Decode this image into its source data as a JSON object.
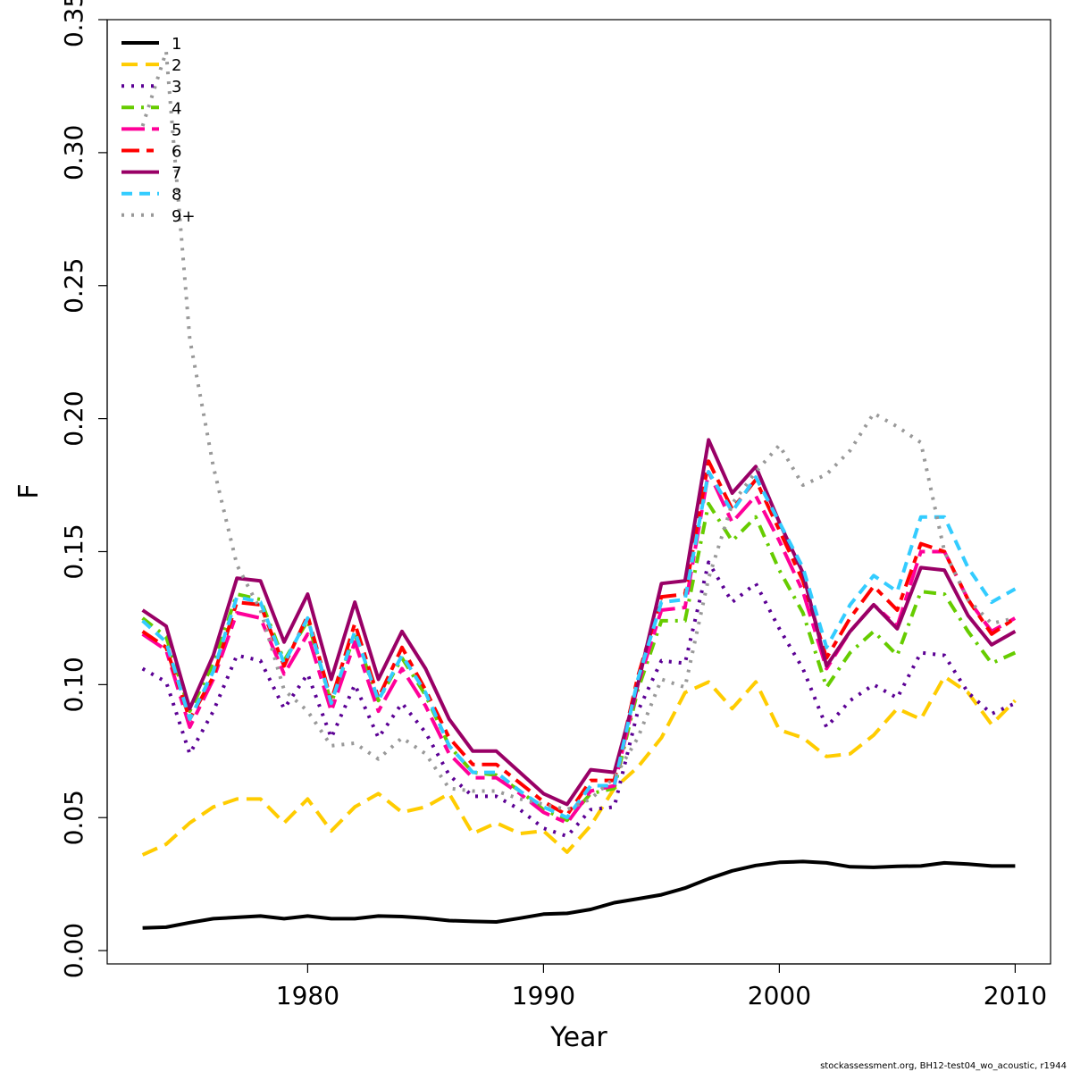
{
  "chart_data": {
    "type": "line",
    "xlabel": "Year",
    "ylabel": "F",
    "xlim": [
      1971.5,
      2011.5
    ],
    "ylim": [
      -0.005,
      0.35
    ],
    "x_ticks": [
      1980,
      1990,
      2000,
      2010
    ],
    "x_tick_labels": [
      "1980",
      "1990",
      "2000",
      "2010"
    ],
    "y_ticks": [
      0.0,
      0.05,
      0.1,
      0.15,
      0.2,
      0.25,
      0.3,
      0.35
    ],
    "y_tick_labels": [
      "0.00",
      "0.05",
      "0.10",
      "0.15",
      "0.20",
      "0.25",
      "0.30",
      "0.35"
    ],
    "grid": false,
    "legend_position": "top-left",
    "x": [
      1973,
      1974,
      1975,
      1976,
      1977,
      1978,
      1979,
      1980,
      1981,
      1982,
      1983,
      1984,
      1985,
      1986,
      1987,
      1988,
      1989,
      1990,
      1991,
      1992,
      1993,
      1994,
      1995,
      1996,
      1997,
      1998,
      1999,
      2000,
      2001,
      2002,
      2003,
      2004,
      2005,
      2006,
      2007,
      2008,
      2009,
      2010
    ],
    "series": [
      {
        "name": "1",
        "color": "#000000",
        "dash": "solid",
        "values": [
          0.0085,
          0.0088,
          0.0105,
          0.012,
          0.0125,
          0.013,
          0.012,
          0.013,
          0.012,
          0.012,
          0.013,
          0.0128,
          0.0122,
          0.0113,
          0.011,
          0.0108,
          0.0122,
          0.0137,
          0.014,
          0.0155,
          0.018,
          0.0195,
          0.021,
          0.0235,
          0.027,
          0.03,
          0.032,
          0.0332,
          0.0335,
          0.033,
          0.0315,
          0.0313,
          0.0317,
          0.0318,
          0.033,
          0.0325,
          0.0318,
          0.0318
        ]
      },
      {
        "name": "2",
        "color": "#FFCC00",
        "dash": "long",
        "values": [
          0.036,
          0.04,
          0.048,
          0.054,
          0.057,
          0.057,
          0.048,
          0.057,
          0.045,
          0.054,
          0.059,
          0.052,
          0.054,
          0.059,
          0.044,
          0.048,
          0.044,
          0.045,
          0.037,
          0.047,
          0.061,
          0.069,
          0.08,
          0.097,
          0.101,
          0.091,
          0.101,
          0.083,
          0.08,
          0.073,
          0.074,
          0.081,
          0.091,
          0.087,
          0.103,
          0.097,
          0.085,
          0.094
        ]
      },
      {
        "name": "3",
        "color": "#5B0094",
        "dash": "dot",
        "values": [
          0.106,
          0.101,
          0.074,
          0.09,
          0.111,
          0.109,
          0.091,
          0.104,
          0.08,
          0.1,
          0.08,
          0.093,
          0.082,
          0.066,
          0.058,
          0.058,
          0.053,
          0.046,
          0.043,
          0.053,
          0.054,
          0.09,
          0.109,
          0.108,
          0.146,
          0.131,
          0.138,
          0.121,
          0.106,
          0.084,
          0.094,
          0.1,
          0.095,
          0.112,
          0.111,
          0.097,
          0.089,
          0.093
        ]
      },
      {
        "name": "4",
        "color": "#66CC00",
        "dash": "dashdot",
        "values": [
          0.125,
          0.118,
          0.09,
          0.108,
          0.134,
          0.132,
          0.109,
          0.124,
          0.093,
          0.119,
          0.094,
          0.11,
          0.096,
          0.077,
          0.067,
          0.066,
          0.06,
          0.053,
          0.049,
          0.059,
          0.061,
          0.098,
          0.124,
          0.124,
          0.168,
          0.154,
          0.163,
          0.143,
          0.127,
          0.099,
          0.112,
          0.12,
          0.111,
          0.135,
          0.134,
          0.12,
          0.108,
          0.112
        ]
      },
      {
        "name": "5",
        "color": "#FF0099",
        "dash": "longshort",
        "values": [
          0.119,
          0.113,
          0.084,
          0.102,
          0.127,
          0.125,
          0.104,
          0.119,
          0.09,
          0.116,
          0.09,
          0.106,
          0.092,
          0.074,
          0.065,
          0.065,
          0.059,
          0.052,
          0.048,
          0.06,
          0.062,
          0.1,
          0.128,
          0.129,
          0.18,
          0.161,
          0.171,
          0.154,
          0.135,
          0.106,
          0.12,
          0.13,
          0.122,
          0.15,
          0.15,
          0.132,
          0.12,
          0.125
        ]
      },
      {
        "name": "6",
        "color": "#FF0000",
        "dash": "twodash",
        "values": [
          0.12,
          0.114,
          0.087,
          0.103,
          0.131,
          0.13,
          0.107,
          0.126,
          0.094,
          0.123,
          0.095,
          0.114,
          0.098,
          0.08,
          0.07,
          0.07,
          0.063,
          0.056,
          0.051,
          0.064,
          0.064,
          0.103,
          0.133,
          0.134,
          0.184,
          0.166,
          0.177,
          0.158,
          0.139,
          0.11,
          0.125,
          0.137,
          0.128,
          0.153,
          0.15,
          0.132,
          0.119,
          0.125
        ]
      },
      {
        "name": "7",
        "color": "#990066",
        "dash": "solid",
        "values": [
          0.128,
          0.122,
          0.091,
          0.111,
          0.14,
          0.139,
          0.116,
          0.134,
          0.102,
          0.131,
          0.102,
          0.12,
          0.106,
          0.087,
          0.075,
          0.075,
          0.067,
          0.059,
          0.055,
          0.068,
          0.067,
          0.1,
          0.138,
          0.139,
          0.192,
          0.172,
          0.182,
          0.161,
          0.142,
          0.107,
          0.12,
          0.13,
          0.121,
          0.144,
          0.143,
          0.126,
          0.115,
          0.12
        ]
      },
      {
        "name": "8",
        "color": "#33CCFF",
        "dash": "dash",
        "values": [
          0.124,
          0.116,
          0.087,
          0.105,
          0.133,
          0.131,
          0.108,
          0.125,
          0.093,
          0.12,
          0.094,
          0.111,
          0.097,
          0.077,
          0.067,
          0.067,
          0.06,
          0.054,
          0.05,
          0.062,
          0.062,
          0.102,
          0.131,
          0.132,
          0.18,
          0.165,
          0.178,
          0.161,
          0.144,
          0.114,
          0.13,
          0.141,
          0.135,
          0.163,
          0.163,
          0.144,
          0.131,
          0.136
        ]
      },
      {
        "name": "9+",
        "color": "#999999",
        "dash": "dot",
        "values": [
          0.31,
          0.338,
          0.23,
          0.182,
          0.145,
          0.128,
          0.098,
          0.09,
          0.077,
          0.078,
          0.072,
          0.08,
          0.074,
          0.061,
          0.06,
          0.06,
          0.057,
          0.055,
          0.053,
          0.057,
          0.065,
          0.08,
          0.102,
          0.099,
          0.14,
          0.168,
          0.18,
          0.19,
          0.175,
          0.179,
          0.188,
          0.202,
          0.197,
          0.191,
          0.15,
          0.132,
          0.123,
          0.125
        ]
      }
    ]
  },
  "footer": "stockassessment.org, BH12-test04_wo_acoustic, r1944"
}
